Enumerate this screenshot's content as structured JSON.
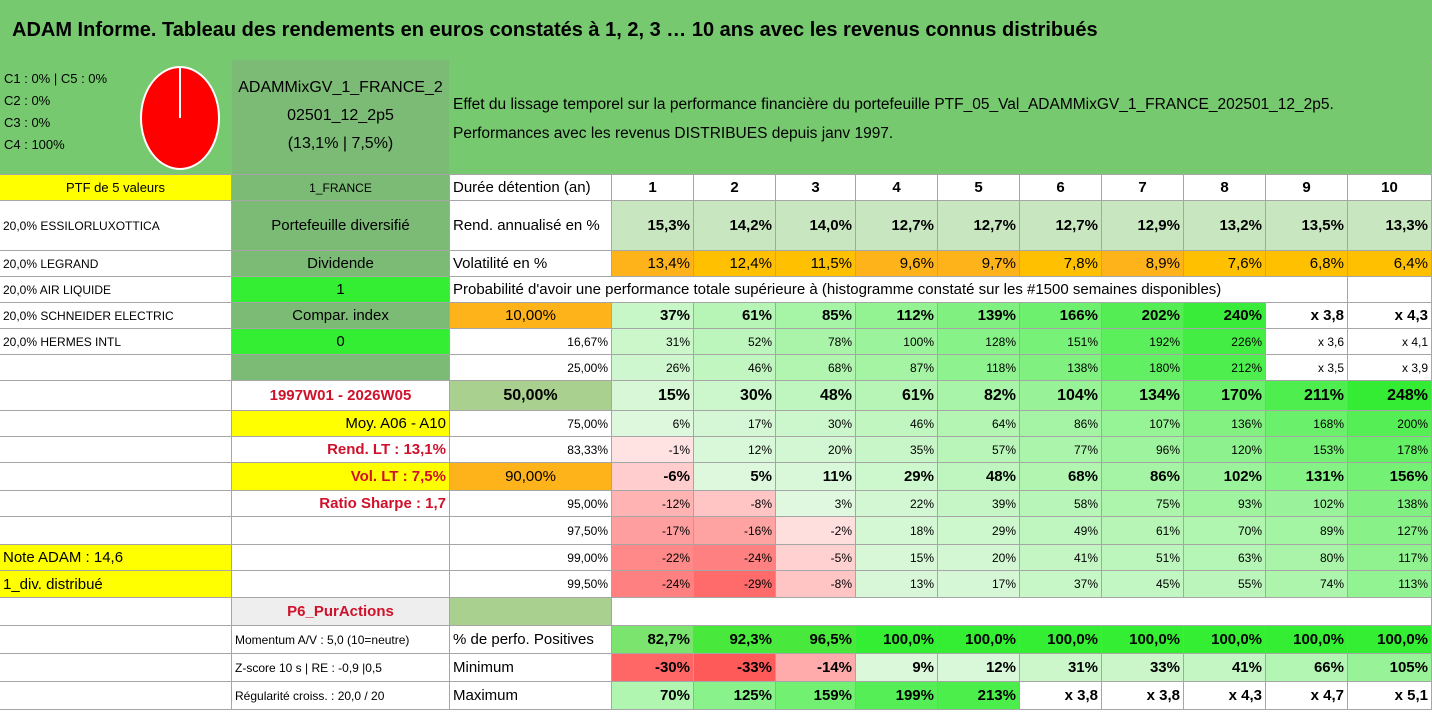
{
  "title": "ADAM Informe. Tableau des rendements en euros constatés à 1, 2, 3 … 10 ans avec les revenus connus distribués",
  "colors": {
    "header_green": "#77c96f",
    "mid_green": "#7cbb76",
    "bright_green": "#33ee33",
    "light_green": "#c8e6c0",
    "yellow": "#ffff00",
    "orange": "#ffb31a",
    "red_text": "#d0112b",
    "pie_red": "#ff0000"
  },
  "pie": {
    "lines": [
      "C1 : 0% | C5 : 0%",
      "C2 : 0%",
      "C3 : 0%",
      "C4 : 100%"
    ],
    "share_percent": 100
  },
  "portfolio": {
    "name_lines": [
      "ADAMMixGV_1_FRANCE_2",
      "02501_12_2p5",
      "(13,1% | 7,5%)"
    ],
    "description_lines": [
      "Effet du lissage temporel sur la performance financière du portefeuille PTF_05_Val_ADAMMixGV_1_FRANCE_202501_12_2p5.",
      "Performances avec les revenus DISTRIBUES depuis janv 1997."
    ]
  },
  "left_col_a": [
    "PTF de 5 valeurs",
    "20,0% ESSILORLUXOTTICA",
    "20,0% LEGRAND",
    "20,0% AIR LIQUIDE",
    "20,0% SCHNEIDER ELECTRIC",
    "20,0% HERMES INTL",
    "",
    "",
    "",
    "",
    "",
    "",
    "",
    "Note ADAM : 14,6",
    "1_div. distribué",
    "",
    "",
    "",
    "",
    ""
  ],
  "left_col_b": [
    "1_FRANCE",
    "Portefeuille diversifié",
    "Dividende",
    "1",
    "Compar. index",
    "0",
    "",
    "1997W01 - 2026W05",
    "Moy. A06 - A10",
    "Rend. LT : 13,1%",
    "Vol. LT : 7,5%",
    "Ratio Sharpe : 1,7",
    "",
    "",
    "",
    "P6_PurActions",
    "Momentum A/V : 5,0 (10=neutre)",
    "Z-score 10 s | RE : -0,9 |0,5",
    "Régularité croiss. : 20,0 / 20"
  ],
  "table": {
    "header_label": "Durée détention (an)",
    "years": [
      "1",
      "2",
      "3",
      "4",
      "5",
      "6",
      "7",
      "8",
      "9",
      "10"
    ],
    "rend_label": "Rend. annualisé en %",
    "rend": [
      "15,3%",
      "14,2%",
      "14,0%",
      "12,7%",
      "12,7%",
      "12,7%",
      "12,9%",
      "13,2%",
      "13,5%",
      "13,3%"
    ],
    "vol_label": "Volatilité en %",
    "vol": [
      "13,4%",
      "12,4%",
      "11,5%",
      "9,6%",
      "9,7%",
      "7,8%",
      "8,9%",
      "7,6%",
      "6,8%",
      "6,4%"
    ],
    "prob_title": "Probabilité d'avoir une performance totale supérieure à (histogramme constaté sur les #1500 semaines disponibles)",
    "prob_rows": [
      {
        "label": "10,00%",
        "values": [
          "37%",
          "61%",
          "85%",
          "112%",
          "139%",
          "166%",
          "202%",
          "240%",
          "x 3,8",
          "x 4,3"
        ]
      },
      {
        "label": "16,67%",
        "values": [
          "31%",
          "52%",
          "78%",
          "100%",
          "128%",
          "151%",
          "192%",
          "226%",
          "x 3,6",
          "x 4,1"
        ]
      },
      {
        "label": "25,00%",
        "values": [
          "26%",
          "46%",
          "68%",
          "87%",
          "118%",
          "138%",
          "180%",
          "212%",
          "x 3,5",
          "x 3,9"
        ]
      },
      {
        "label": "50,00%",
        "values": [
          "15%",
          "30%",
          "48%",
          "61%",
          "82%",
          "104%",
          "134%",
          "170%",
          "211%",
          "248%"
        ]
      },
      {
        "label": "75,00%",
        "values": [
          "6%",
          "17%",
          "30%",
          "46%",
          "64%",
          "86%",
          "107%",
          "136%",
          "168%",
          "200%"
        ]
      },
      {
        "label": "83,33%",
        "values": [
          "-1%",
          "12%",
          "20%",
          "35%",
          "57%",
          "77%",
          "96%",
          "120%",
          "153%",
          "178%"
        ]
      },
      {
        "label": "90,00%",
        "values": [
          "-6%",
          "5%",
          "11%",
          "29%",
          "48%",
          "68%",
          "86%",
          "102%",
          "131%",
          "156%"
        ]
      },
      {
        "label": "95,00%",
        "values": [
          "-12%",
          "-8%",
          "3%",
          "22%",
          "39%",
          "58%",
          "75%",
          "93%",
          "102%",
          "138%"
        ]
      },
      {
        "label": "97,50%",
        "values": [
          "-17%",
          "-16%",
          "-2%",
          "18%",
          "29%",
          "49%",
          "61%",
          "70%",
          "89%",
          "127%"
        ]
      },
      {
        "label": "99,00%",
        "values": [
          "-22%",
          "-24%",
          "-5%",
          "15%",
          "20%",
          "41%",
          "51%",
          "63%",
          "80%",
          "117%"
        ]
      },
      {
        "label": "99,50%",
        "values": [
          "-24%",
          "-29%",
          "-8%",
          "13%",
          "17%",
          "37%",
          "45%",
          "55%",
          "74%",
          "113%"
        ]
      }
    ],
    "pos_label": "% de perfo. Positives",
    "pos": [
      "82,7%",
      "92,3%",
      "96,5%",
      "100,0%",
      "100,0%",
      "100,0%",
      "100,0%",
      "100,0%",
      "100,0%",
      "100,0%"
    ],
    "min_label": "Minimum",
    "min": [
      "-30%",
      "-33%",
      "-14%",
      "9%",
      "12%",
      "31%",
      "33%",
      "41%",
      "66%",
      "105%"
    ],
    "max_label": "Maximum",
    "max": [
      "70%",
      "125%",
      "159%",
      "199%",
      "213%",
      "x 3,8",
      "x 3,8",
      "x 4,3",
      "x 4,7",
      "x 5,1"
    ]
  }
}
